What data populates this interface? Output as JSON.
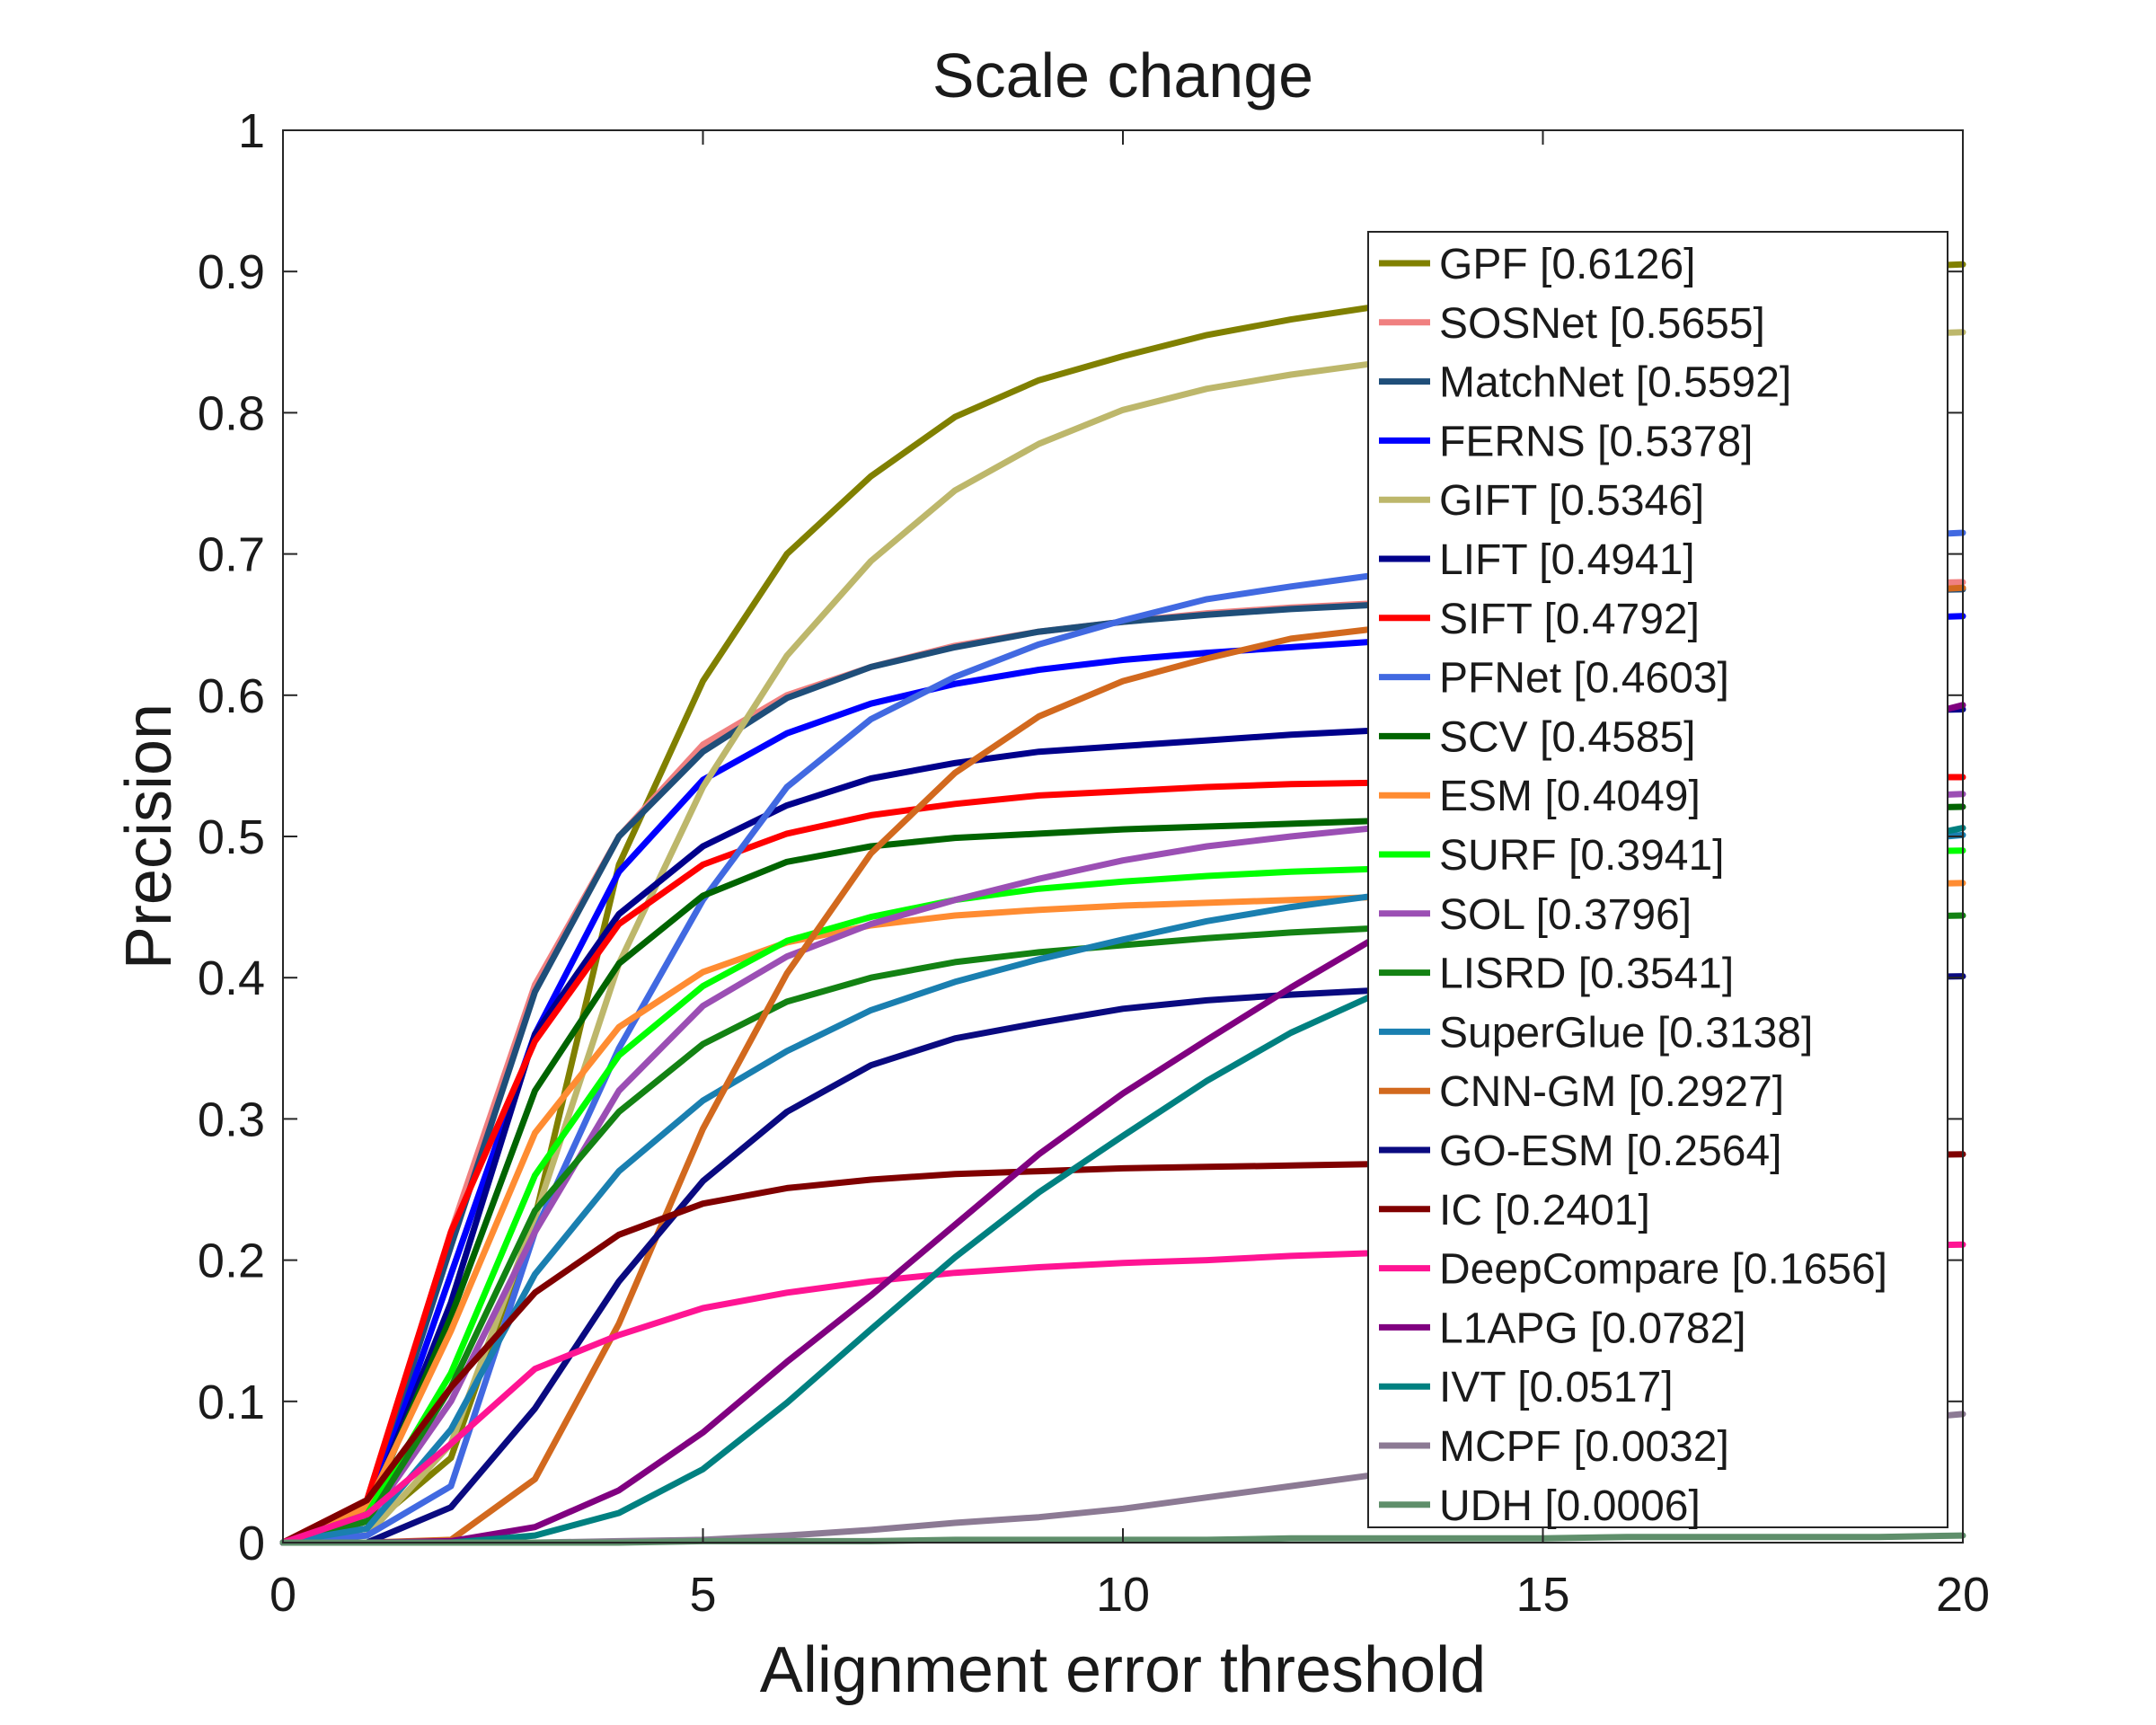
{
  "chart_data": {
    "type": "line",
    "title": "Scale change",
    "xlabel": "Alignment error threshold",
    "ylabel": "Precision",
    "xlim": [
      0,
      20
    ],
    "ylim": [
      0,
      1
    ],
    "xticks": [
      "0",
      "5",
      "10",
      "15",
      "20"
    ],
    "yticks": [
      "0",
      "0.1",
      "0.2",
      "0.3",
      "0.4",
      "0.5",
      "0.6",
      "0.7",
      "0.8",
      "0.9",
      "1"
    ],
    "grid": false,
    "legend_position": "top-right",
    "x": [
      0,
      1,
      2,
      3,
      4,
      5,
      6,
      7,
      8,
      9,
      10,
      11,
      12,
      13,
      14,
      15,
      16,
      17,
      18,
      19,
      20
    ],
    "series": [
      {
        "name": "GPF [0.6126]",
        "color": "#808000",
        "values": [
          0,
          0.01,
          0.06,
          0.23,
          0.48,
          0.61,
          0.7,
          0.755,
          0.797,
          0.823,
          0.84,
          0.855,
          0.866,
          0.875,
          0.882,
          0.888,
          0.893,
          0.897,
          0.9,
          0.903,
          0.905
        ]
      },
      {
        "name": "SOSNet [0.5655]",
        "color": "#f08080",
        "values": [
          0,
          0.03,
          0.22,
          0.395,
          0.5,
          0.565,
          0.6,
          0.62,
          0.635,
          0.645,
          0.652,
          0.658,
          0.662,
          0.665,
          0.668,
          0.671,
          0.673,
          0.675,
          0.677,
          0.679,
          0.68
        ]
      },
      {
        "name": "MatchNet [0.5592]",
        "color": "#1f4e79",
        "values": [
          0,
          0.025,
          0.21,
          0.39,
          0.5,
          0.56,
          0.598,
          0.62,
          0.634,
          0.645,
          0.652,
          0.657,
          0.661,
          0.664,
          0.666,
          0.668,
          0.67,
          0.672,
          0.673,
          0.674,
          0.675
        ]
      },
      {
        "name": "FERNS [0.5378]",
        "color": "#0000ff",
        "values": [
          0,
          0.02,
          0.19,
          0.36,
          0.475,
          0.54,
          0.573,
          0.594,
          0.608,
          0.618,
          0.625,
          0.63,
          0.634,
          0.638,
          0.641,
          0.644,
          0.647,
          0.65,
          0.652,
          0.654,
          0.656
        ]
      },
      {
        "name": "GIFT [0.5346]",
        "color": "#bdb76b",
        "values": [
          0,
          0.005,
          0.07,
          0.23,
          0.41,
          0.535,
          0.628,
          0.695,
          0.745,
          0.778,
          0.802,
          0.817,
          0.827,
          0.835,
          0.84,
          0.844,
          0.848,
          0.851,
          0.853,
          0.855,
          0.857
        ]
      },
      {
        "name": "LIFT [0.4941]",
        "color": "#00008b",
        "values": [
          0,
          0.02,
          0.17,
          0.36,
          0.445,
          0.493,
          0.522,
          0.541,
          0.552,
          0.56,
          0.564,
          0.568,
          0.572,
          0.575,
          0.578,
          0.58,
          0.583,
          0.585,
          0.587,
          0.589,
          0.59
        ]
      },
      {
        "name": "SIFT [0.4792]",
        "color": "#ff0000",
        "values": [
          0,
          0.03,
          0.22,
          0.355,
          0.438,
          0.48,
          0.502,
          0.515,
          0.523,
          0.529,
          0.532,
          0.535,
          0.537,
          0.538,
          0.539,
          0.54,
          0.54,
          0.541,
          0.541,
          0.542,
          0.542
        ]
      },
      {
        "name": "PFNet [0.4603]",
        "color": "#4169e1",
        "values": [
          0,
          0.005,
          0.04,
          0.22,
          0.35,
          0.455,
          0.535,
          0.583,
          0.613,
          0.636,
          0.653,
          0.668,
          0.677,
          0.685,
          0.691,
          0.696,
          0.701,
          0.705,
          0.709,
          0.712,
          0.715
        ]
      },
      {
        "name": "SCV [0.4585]",
        "color": "#006400",
        "values": [
          0,
          0.02,
          0.16,
          0.32,
          0.41,
          0.458,
          0.482,
          0.493,
          0.499,
          0.502,
          0.505,
          0.507,
          0.509,
          0.511,
          0.513,
          0.514,
          0.516,
          0.517,
          0.518,
          0.52,
          0.521
        ]
      },
      {
        "name": "ESM [0.4049]",
        "color": "#ff8c32",
        "values": [
          0,
          0.025,
          0.15,
          0.29,
          0.365,
          0.404,
          0.425,
          0.437,
          0.444,
          0.448,
          0.451,
          0.453,
          0.455,
          0.457,
          0.459,
          0.461,
          0.462,
          0.464,
          0.465,
          0.466,
          0.467
        ]
      },
      {
        "name": "SURF [0.3941]",
        "color": "#00ff00",
        "values": [
          0,
          0.02,
          0.12,
          0.26,
          0.345,
          0.394,
          0.426,
          0.443,
          0.455,
          0.463,
          0.468,
          0.472,
          0.475,
          0.477,
          0.48,
          0.482,
          0.484,
          0.486,
          0.487,
          0.489,
          0.49
        ]
      },
      {
        "name": "SOL [0.3796]",
        "color": "#9b4fb4",
        "values": [
          0,
          0.015,
          0.1,
          0.22,
          0.32,
          0.38,
          0.415,
          0.438,
          0.455,
          0.47,
          0.483,
          0.493,
          0.5,
          0.506,
          0.511,
          0.515,
          0.519,
          0.522,
          0.525,
          0.528,
          0.53
        ]
      },
      {
        "name": "LISRD [0.3541]",
        "color": "#138213",
        "values": [
          0,
          0.015,
          0.11,
          0.235,
          0.305,
          0.353,
          0.383,
          0.4,
          0.411,
          0.418,
          0.423,
          0.428,
          0.432,
          0.435,
          0.437,
          0.439,
          0.44,
          0.441,
          0.442,
          0.443,
          0.444
        ]
      },
      {
        "name": "SuperGlue [0.3138]",
        "color": "#1a7fb0",
        "values": [
          0,
          0.01,
          0.08,
          0.19,
          0.263,
          0.313,
          0.348,
          0.377,
          0.397,
          0.413,
          0.427,
          0.44,
          0.45,
          0.458,
          0.466,
          0.473,
          0.48,
          0.486,
          0.491,
          0.496,
          0.501
        ]
      },
      {
        "name": "CNN-GM [0.2927]",
        "color": "#d2691e",
        "values": [
          0,
          0,
          0.002,
          0.045,
          0.155,
          0.293,
          0.403,
          0.488,
          0.545,
          0.585,
          0.61,
          0.626,
          0.64,
          0.647,
          0.653,
          0.658,
          0.663,
          0.667,
          0.67,
          0.673,
          0.676
        ]
      },
      {
        "name": "GO-ESM [0.2564]",
        "color": "#0a0a80",
        "values": [
          0,
          0,
          0.025,
          0.095,
          0.185,
          0.256,
          0.305,
          0.338,
          0.357,
          0.368,
          0.378,
          0.384,
          0.388,
          0.391,
          0.393,
          0.395,
          0.396,
          0.398,
          0.399,
          0.4,
          0.401
        ]
      },
      {
        "name": "IC [0.2401]",
        "color": "#800000",
        "values": [
          0,
          0.03,
          0.11,
          0.177,
          0.218,
          0.24,
          0.251,
          0.257,
          0.261,
          0.263,
          0.265,
          0.266,
          0.267,
          0.268,
          0.269,
          0.27,
          0.271,
          0.272,
          0.273,
          0.274,
          0.275
        ]
      },
      {
        "name": "DeepCompare [0.1656]",
        "color": "#ff1493",
        "values": [
          0,
          0.02,
          0.07,
          0.123,
          0.147,
          0.166,
          0.177,
          0.185,
          0.191,
          0.195,
          0.198,
          0.2,
          0.203,
          0.205,
          0.206,
          0.207,
          0.208,
          0.209,
          0.21,
          0.21,
          0.211
        ]
      },
      {
        "name": "L1APG [0.0782]",
        "color": "#800080",
        "values": [
          0,
          0,
          0.001,
          0.011,
          0.037,
          0.078,
          0.128,
          0.175,
          0.225,
          0.275,
          0.318,
          0.356,
          0.393,
          0.428,
          0.458,
          0.487,
          0.513,
          0.537,
          0.559,
          0.578,
          0.593
        ]
      },
      {
        "name": "IVT [0.0517]",
        "color": "#008080",
        "values": [
          0,
          0,
          0,
          0.005,
          0.021,
          0.052,
          0.099,
          0.151,
          0.202,
          0.248,
          0.288,
          0.327,
          0.361,
          0.388,
          0.41,
          0.43,
          0.449,
          0.465,
          0.48,
          0.494,
          0.506
        ]
      },
      {
        "name": "MCPF [0.0032]",
        "color": "#8c7a94",
        "values": [
          0,
          0,
          0,
          0,
          0.001,
          0.002,
          0.005,
          0.009,
          0.014,
          0.018,
          0.024,
          0.032,
          0.04,
          0.048,
          0.055,
          0.062,
          0.069,
          0.075,
          0.081,
          0.086,
          0.091
        ]
      },
      {
        "name": "UDH [0.0006]",
        "color": "#5f8f6b",
        "values": [
          0,
          0,
          0,
          0,
          0,
          0.001,
          0.001,
          0.001,
          0.002,
          0.002,
          0.002,
          0.002,
          0.003,
          0.003,
          0.003,
          0.003,
          0.004,
          0.004,
          0.004,
          0.004,
          0.005
        ]
      }
    ]
  }
}
